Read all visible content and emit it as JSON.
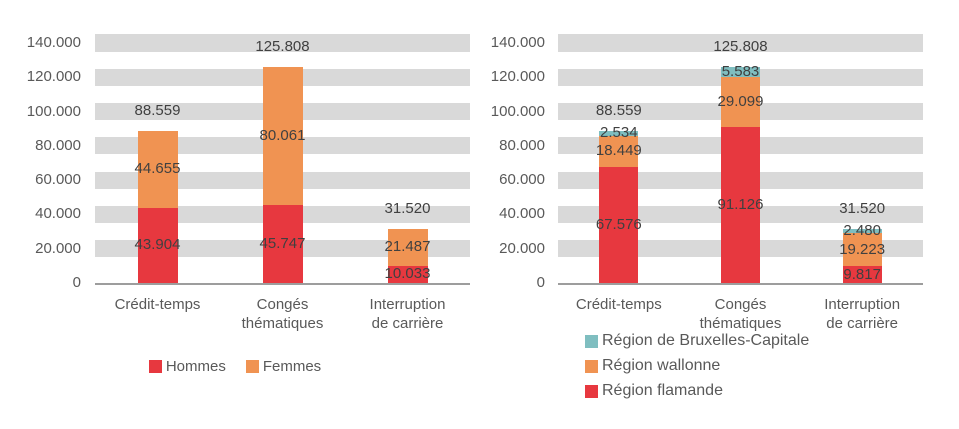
{
  "colors": {
    "band": "#d9d9d9",
    "axis_line": "#9d9d9d",
    "tick_text": "#595959",
    "category_text": "#595959",
    "legend_text": "#595959",
    "value_text": "#404040",
    "red": "#e7383f",
    "orange": "#f09352",
    "teal": "#7fbec0"
  },
  "chart_data": [
    {
      "type": "bar",
      "stacked": true,
      "title": "",
      "xlabel": "",
      "ylabel": "",
      "categories": [
        [
          "Crédit-temps"
        ],
        [
          "Congés",
          "thématiques"
        ],
        [
          "Interruption",
          "de carrière"
        ]
      ],
      "series": [
        {
          "name": "Hommes",
          "color": "#e7383f",
          "values": [
            43904,
            45747,
            10033
          ]
        },
        {
          "name": "Femmes",
          "color": "#f09352",
          "values": [
            44655,
            80061,
            21487
          ]
        }
      ],
      "totals": [
        88559,
        125808,
        31520
      ],
      "ylim": [
        0,
        140000
      ],
      "ytick_step": 20000,
      "ytick_values": [
        0,
        20000,
        40000,
        60000,
        80000,
        100000,
        120000,
        140000
      ],
      "ytick_labels": [
        "0",
        "20.000",
        "40.000",
        "60.000",
        "80.000",
        "100.000",
        "120.000",
        "140.000"
      ],
      "number_format": "thousands-dot",
      "grid": "thick-gray-bands-at-each-ytick",
      "legend": {
        "position": "bottom-center",
        "orientation": "horizontal",
        "items": [
          "Hommes",
          "Femmes"
        ]
      }
    },
    {
      "type": "bar",
      "stacked": true,
      "title": "",
      "xlabel": "",
      "ylabel": "",
      "categories": [
        [
          "Crédit-temps"
        ],
        [
          "Congés",
          "thématiques"
        ],
        [
          "Interruption",
          "de carrière"
        ]
      ],
      "series": [
        {
          "name": "Région flamande",
          "color": "#e7383f",
          "values": [
            67576,
            91126,
            9817
          ]
        },
        {
          "name": "Région wallonne",
          "color": "#f09352",
          "values": [
            18449,
            29099,
            19223
          ]
        },
        {
          "name": "Région de Bruxelles-Capitale",
          "color": "#7fbec0",
          "values": [
            2534,
            5583,
            2480
          ]
        }
      ],
      "totals": [
        88559,
        125808,
        31520
      ],
      "ylim": [
        0,
        140000
      ],
      "ytick_step": 20000,
      "ytick_values": [
        0,
        20000,
        40000,
        60000,
        80000,
        100000,
        120000,
        140000
      ],
      "ytick_labels": [
        "0",
        "20.000",
        "40.000",
        "60.000",
        "80.000",
        "100.000",
        "120.000",
        "140.000"
      ],
      "number_format": "thousands-dot",
      "grid": "thick-gray-bands-at-each-ytick",
      "legend": {
        "position": "bottom-left",
        "orientation": "vertical",
        "items": [
          "Région de Bruxelles-Capitale",
          "Région wallonne",
          "Région flamande"
        ]
      }
    }
  ]
}
